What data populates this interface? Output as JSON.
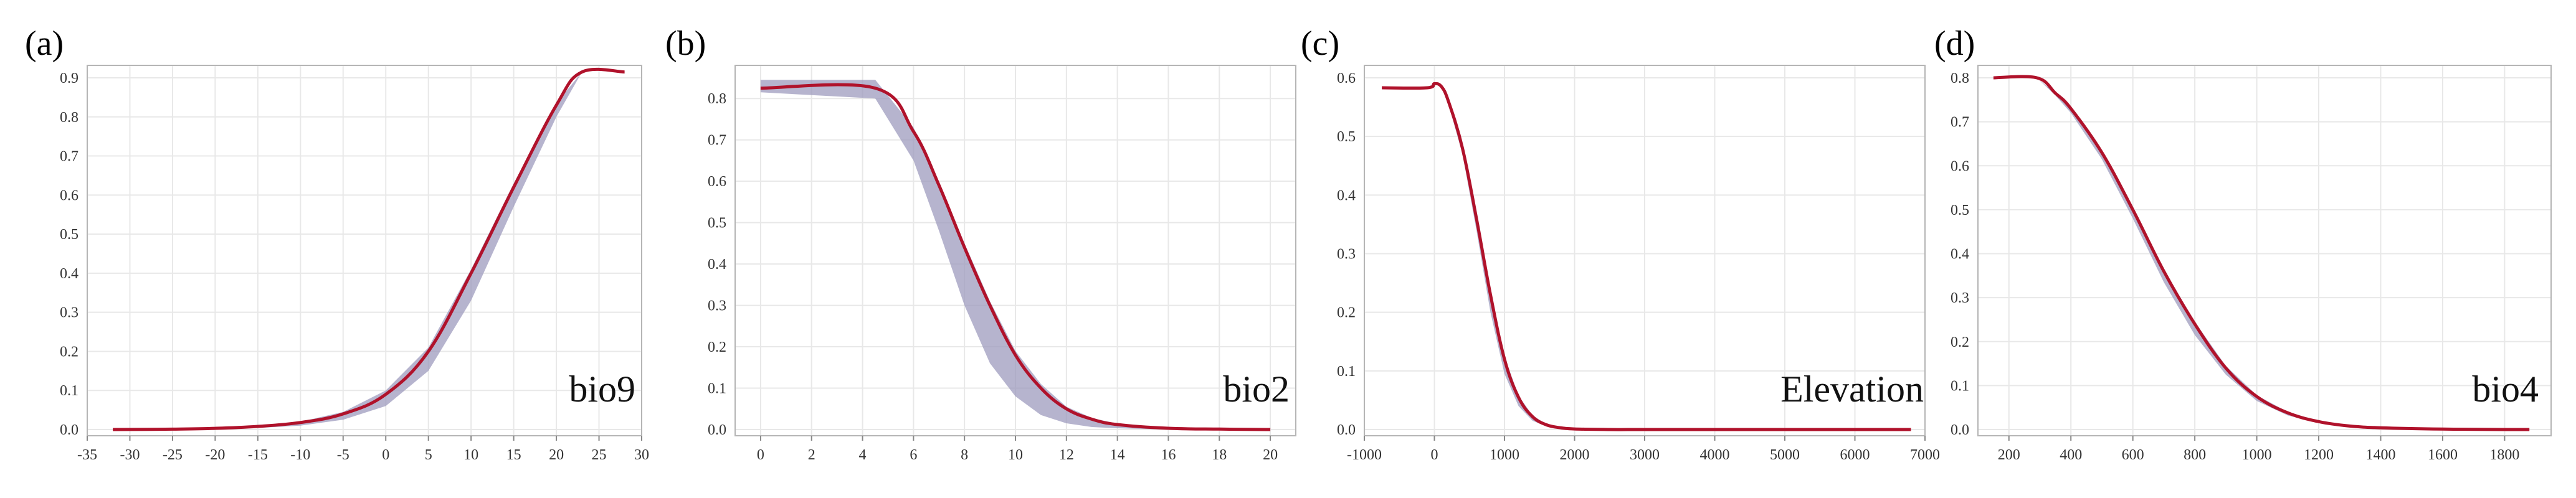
{
  "chart_data": [
    {
      "id": "a",
      "type": "line",
      "panel_label": "(a)",
      "variable_label": "bio9",
      "title": "",
      "xlabel": "",
      "ylabel": "",
      "xlim": [
        -35,
        30
      ],
      "ylim": [
        0,
        0.9
      ],
      "xticks": [
        -35,
        -30,
        -25,
        -20,
        -15,
        -10,
        -5,
        0,
        5,
        10,
        15,
        20,
        25,
        30
      ],
      "yticks": [
        0.0,
        0.1,
        0.2,
        0.3,
        0.4,
        0.5,
        0.6,
        0.7,
        0.8,
        0.9
      ],
      "ytick_labels": [
        "0.0",
        "0.1",
        "0.2",
        "0.3",
        "0.4",
        "0.5",
        "0.6",
        "0.7",
        "0.8",
        "0.9"
      ],
      "grid": true,
      "series": [
        {
          "x": [
            -32,
            -25,
            -20,
            -15,
            -10,
            -5,
            0,
            5,
            10,
            15,
            20,
            23,
            28
          ],
          "y": [
            0.0,
            0.001,
            0.003,
            0.008,
            0.018,
            0.04,
            0.09,
            0.2,
            0.4,
            0.62,
            0.83,
            0.915,
            0.915
          ],
          "lower": [
            0.0,
            0.0,
            0.001,
            0.004,
            0.01,
            0.025,
            0.06,
            0.15,
            0.33,
            0.57,
            0.8,
            0.915,
            0.915
          ],
          "upper": [
            0.0,
            0.001,
            0.004,
            0.009,
            0.02,
            0.045,
            0.1,
            0.21,
            0.41,
            0.63,
            0.835,
            0.915,
            0.915
          ]
        }
      ],
      "colors": {
        "line": "#b0122b",
        "band": "#9d9bbd"
      }
    },
    {
      "id": "b",
      "type": "line",
      "panel_label": "(b)",
      "variable_label": "bio2",
      "title": "",
      "xlabel": "",
      "ylabel": "",
      "xlim": [
        -1,
        21
      ],
      "ylim": [
        0,
        0.85
      ],
      "xticks": [
        0,
        2,
        4,
        6,
        8,
        10,
        12,
        14,
        16,
        18,
        20
      ],
      "yticks": [
        0.0,
        0.1,
        0.2,
        0.3,
        0.4,
        0.5,
        0.6,
        0.7,
        0.8
      ],
      "ytick_labels": [
        "0.0",
        "0.1",
        "0.2",
        "0.3",
        "0.4",
        "0.5",
        "0.6",
        "0.7",
        "0.8"
      ],
      "grid": true,
      "series": [
        {
          "x": [
            0,
            4.5,
            6,
            7,
            8,
            9,
            10,
            11,
            12,
            13,
            14,
            16,
            18,
            20
          ],
          "y": [
            0.825,
            0.825,
            0.72,
            0.59,
            0.44,
            0.3,
            0.18,
            0.1,
            0.05,
            0.025,
            0.012,
            0.003,
            0.001,
            0.0
          ],
          "lower": [
            0.815,
            0.8,
            0.65,
            0.48,
            0.3,
            0.16,
            0.08,
            0.035,
            0.015,
            0.006,
            0.003,
            0.0,
            0.0,
            0.0
          ],
          "upper": [
            0.845,
            0.845,
            0.73,
            0.6,
            0.45,
            0.31,
            0.19,
            0.11,
            0.055,
            0.028,
            0.014,
            0.004,
            0.001,
            0.0
          ]
        }
      ],
      "colors": {
        "line": "#b0122b",
        "band": "#9d9bbd"
      }
    },
    {
      "id": "c",
      "type": "line",
      "panel_label": "(c)",
      "variable_label": "Elevation",
      "title": "",
      "xlabel": "",
      "ylabel": "",
      "xlim": [
        -1000,
        7000
      ],
      "ylim": [
        0,
        0.6
      ],
      "xticks": [
        -1000,
        0,
        1000,
        2000,
        3000,
        4000,
        5000,
        6000,
        7000
      ],
      "yticks": [
        0.0,
        0.1,
        0.2,
        0.3,
        0.4,
        0.5,
        0.6
      ],
      "ytick_labels": [
        "0.0",
        "0.1",
        "0.2",
        "0.3",
        "0.4",
        "0.5",
        "0.6"
      ],
      "grid": true,
      "series": [
        {
          "x": [
            -750,
            -100,
            0,
            100,
            200,
            400,
            600,
            800,
            1000,
            1200,
            1400,
            1600,
            1800,
            2000,
            2500,
            3000,
            4000,
            5000,
            6000,
            6800
          ],
          "y": [
            0.583,
            0.583,
            0.59,
            0.585,
            0.56,
            0.48,
            0.36,
            0.23,
            0.12,
            0.055,
            0.022,
            0.008,
            0.003,
            0.001,
            0.0,
            0.0,
            0.0,
            0.0,
            0.0,
            0.0
          ],
          "lower": [
            0.583,
            0.583,
            0.59,
            0.585,
            0.555,
            0.47,
            0.34,
            0.2,
            0.095,
            0.04,
            0.015,
            0.005,
            0.002,
            0.0,
            0.0,
            0.0,
            0.0,
            0.0,
            0.0,
            0.0
          ],
          "upper": [
            0.583,
            0.583,
            0.592,
            0.587,
            0.562,
            0.485,
            0.365,
            0.235,
            0.125,
            0.058,
            0.024,
            0.009,
            0.003,
            0.001,
            0.0,
            0.0,
            0.0,
            0.0,
            0.0,
            0.0
          ]
        }
      ],
      "colors": {
        "line": "#b0122b",
        "band": "#9d9bbd"
      }
    },
    {
      "id": "d",
      "type": "line",
      "panel_label": "(d)",
      "variable_label": "bio4",
      "title": "",
      "xlabel": "",
      "ylabel": "",
      "xlim": [
        100,
        1950
      ],
      "ylim": [
        0,
        0.8
      ],
      "xticks": [
        200,
        400,
        600,
        800,
        1000,
        1200,
        1400,
        1600,
        1800
      ],
      "yticks": [
        0.0,
        0.1,
        0.2,
        0.3,
        0.4,
        0.5,
        0.6,
        0.7,
        0.8
      ],
      "ytick_labels": [
        "0.0",
        "0.1",
        "0.2",
        "0.3",
        "0.4",
        "0.5",
        "0.6",
        "0.7",
        "0.8"
      ],
      "grid": true,
      "series": [
        {
          "x": [
            150,
            290,
            350,
            400,
            500,
            600,
            700,
            800,
            900,
            1000,
            1100,
            1200,
            1300,
            1400,
            1600,
            1800,
            1880
          ],
          "y": [
            0.8,
            0.8,
            0.765,
            0.73,
            0.63,
            0.5,
            0.36,
            0.24,
            0.14,
            0.075,
            0.038,
            0.018,
            0.008,
            0.004,
            0.001,
            0.0,
            0.0
          ],
          "lower": [
            0.8,
            0.8,
            0.76,
            0.72,
            0.615,
            0.48,
            0.335,
            0.215,
            0.125,
            0.065,
            0.032,
            0.015,
            0.007,
            0.003,
            0.001,
            0.0,
            0.0
          ],
          "upper": [
            0.8,
            0.8,
            0.765,
            0.732,
            0.635,
            0.505,
            0.365,
            0.245,
            0.145,
            0.078,
            0.04,
            0.019,
            0.009,
            0.004,
            0.001,
            0.0,
            0.0
          ]
        }
      ],
      "colors": {
        "line": "#b0122b",
        "band": "#9d9bbd"
      }
    }
  ]
}
